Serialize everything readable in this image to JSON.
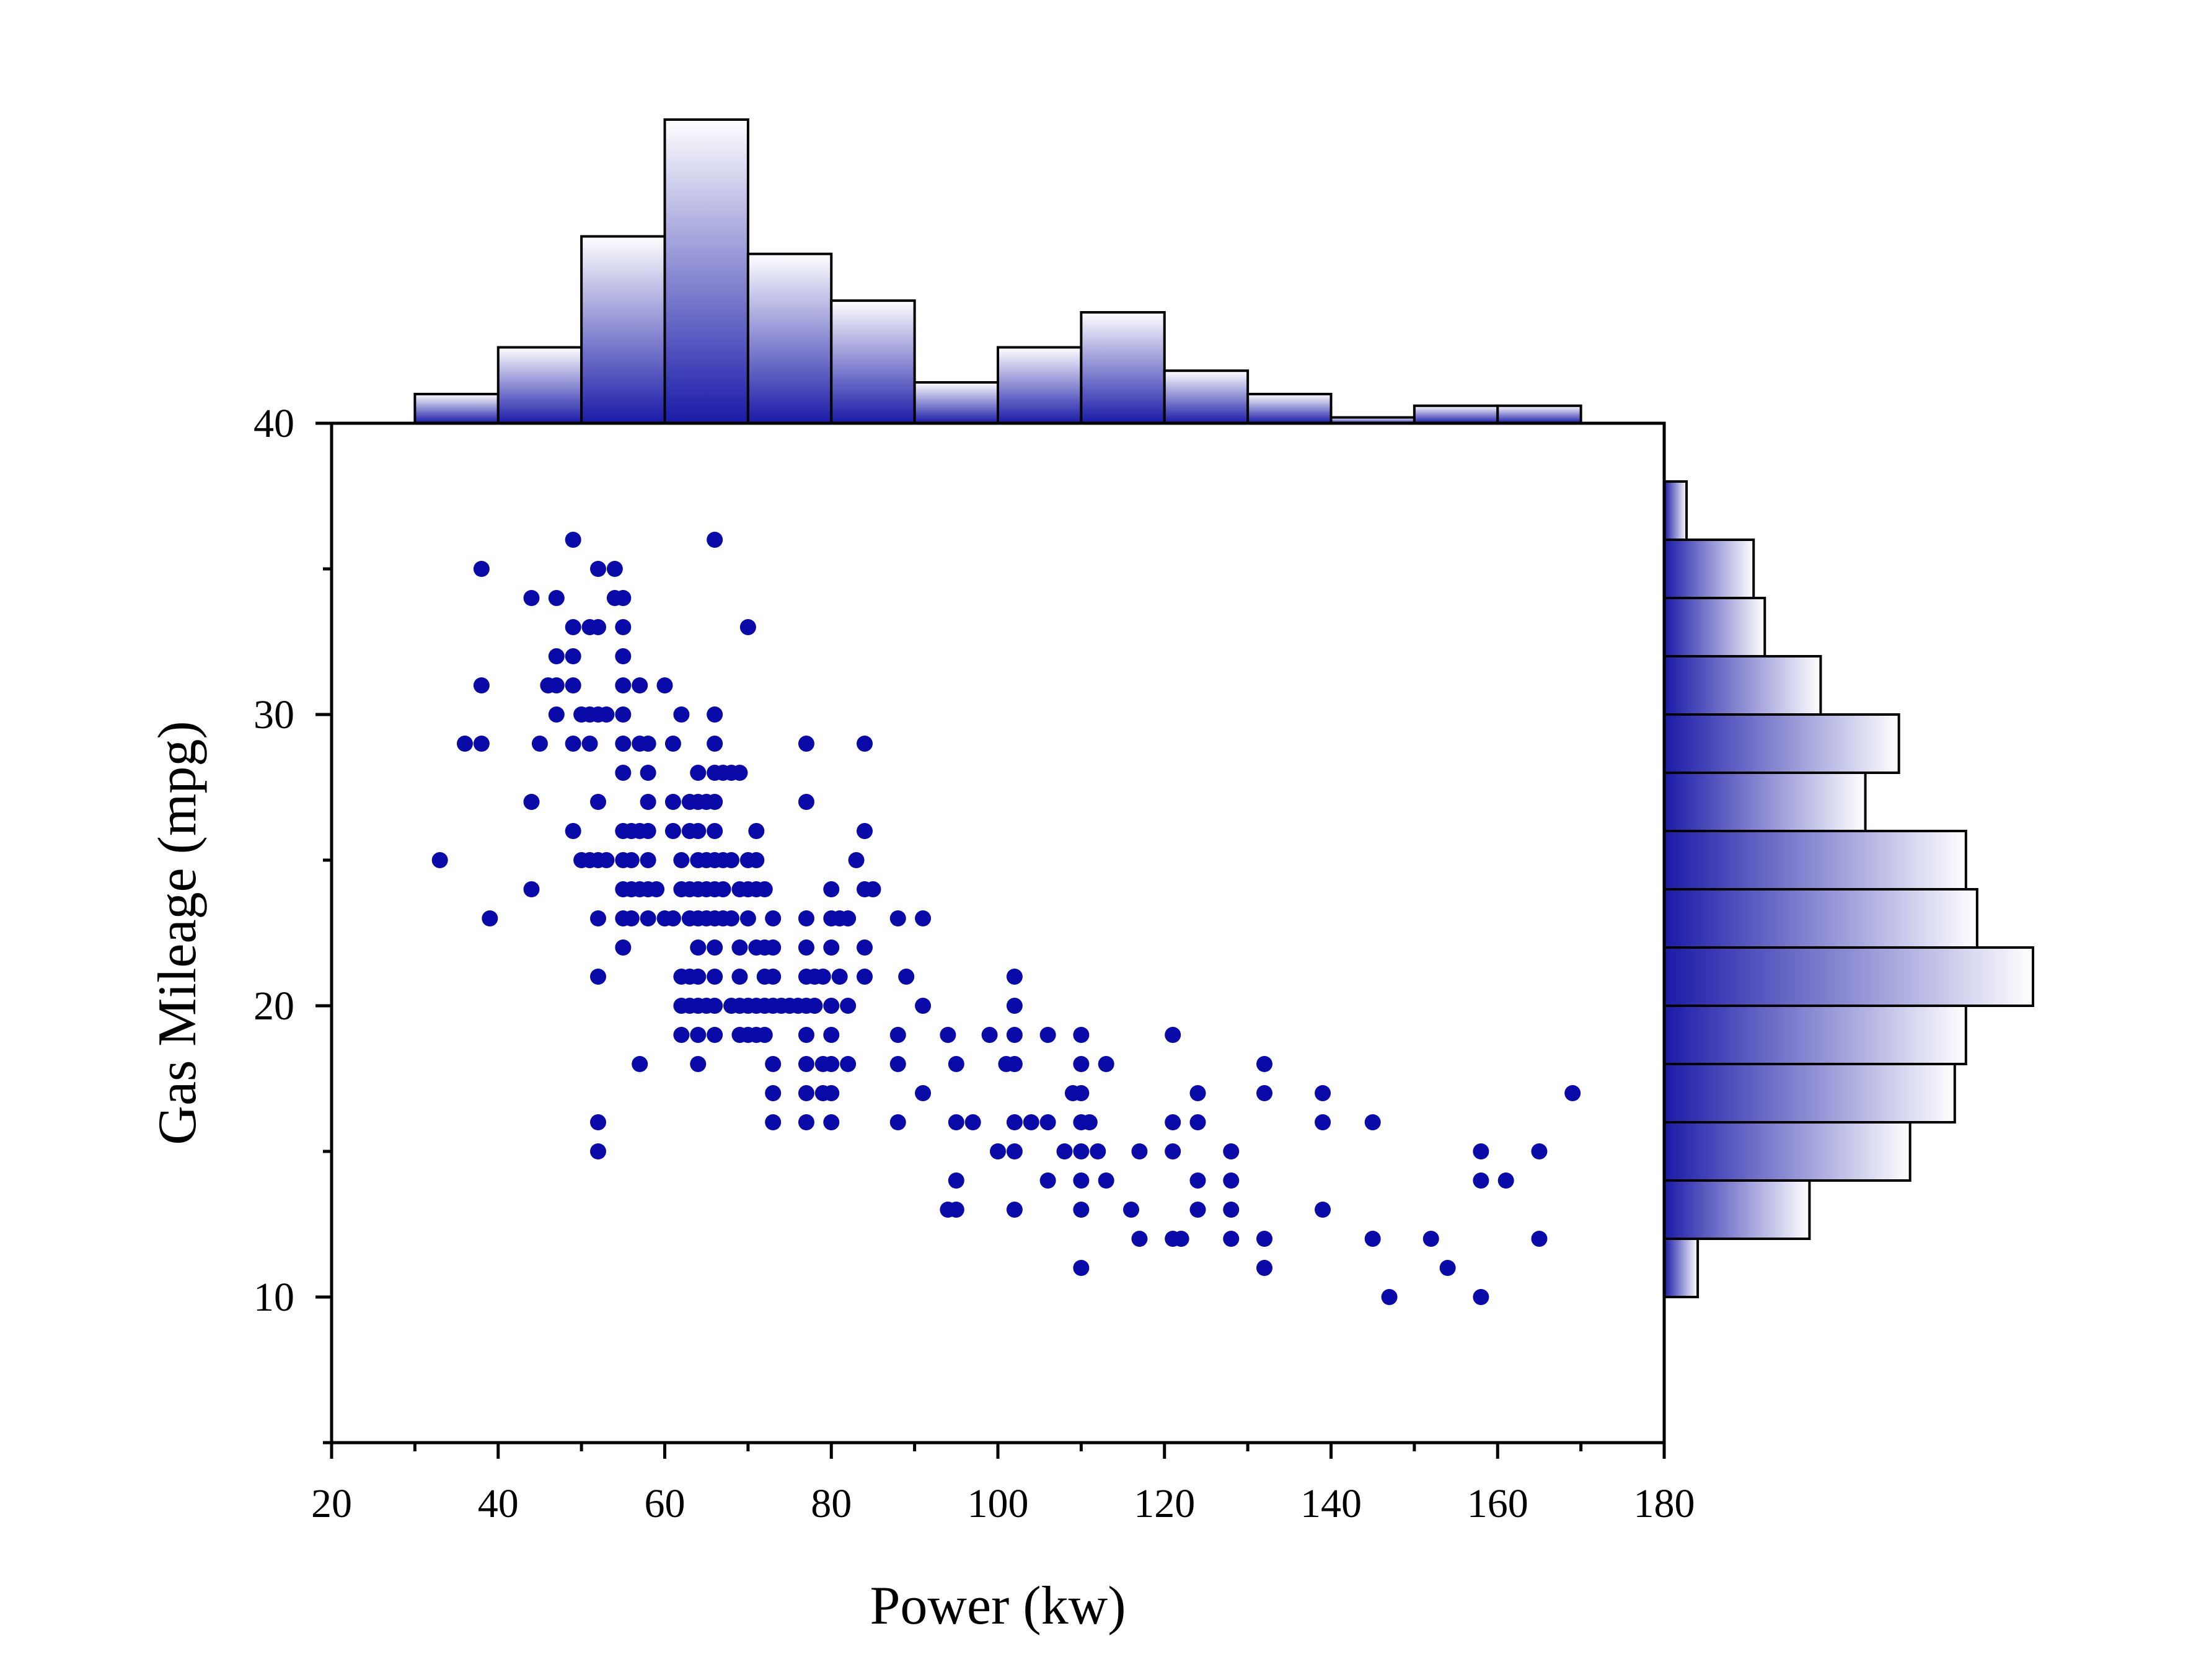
{
  "chart_data": {
    "type": "scatter",
    "xlabel": "Power (kw)",
    "ylabel": "Gas Mileage (mpg)",
    "xlim": [
      20,
      180
    ],
    "ylim": [
      5,
      40
    ],
    "x_ticks": [
      20,
      40,
      60,
      80,
      100,
      120,
      140,
      160,
      180
    ],
    "y_ticks": [
      10,
      20,
      30,
      40
    ],
    "grid": false,
    "legend": "none",
    "point_color": "#0a0aa8",
    "histogram_gradient": [
      "#1a1aa8",
      "#ffffff"
    ],
    "points": [
      [
        33,
        25
      ],
      [
        36,
        29
      ],
      [
        38,
        29
      ],
      [
        38,
        31
      ],
      [
        38,
        35
      ],
      [
        39,
        23
      ],
      [
        44,
        34
      ],
      [
        44,
        27
      ],
      [
        44,
        24
      ],
      [
        45,
        29
      ],
      [
        46,
        31
      ],
      [
        47,
        31
      ],
      [
        47,
        34
      ],
      [
        47,
        32
      ],
      [
        47,
        30
      ],
      [
        49,
        36
      ],
      [
        49,
        33
      ],
      [
        49,
        32
      ],
      [
        49,
        31
      ],
      [
        49,
        29
      ],
      [
        49,
        26
      ],
      [
        50,
        30
      ],
      [
        50,
        25
      ],
      [
        51,
        33
      ],
      [
        51,
        30
      ],
      [
        51,
        29
      ],
      [
        51,
        25
      ],
      [
        52,
        35
      ],
      [
        52,
        33
      ],
      [
        52,
        30
      ],
      [
        52,
        27
      ],
      [
        52,
        25
      ],
      [
        52,
        23
      ],
      [
        52,
        21
      ],
      [
        52,
        16
      ],
      [
        52,
        15
      ],
      [
        53,
        30
      ],
      [
        53,
        25
      ],
      [
        54,
        35
      ],
      [
        54,
        34
      ],
      [
        55,
        34
      ],
      [
        55,
        33
      ],
      [
        55,
        32
      ],
      [
        55,
        31
      ],
      [
        55,
        30
      ],
      [
        55,
        29
      ],
      [
        55,
        28
      ],
      [
        55,
        26
      ],
      [
        55,
        25
      ],
      [
        55,
        24
      ],
      [
        55,
        23
      ],
      [
        55,
        22
      ],
      [
        56,
        26
      ],
      [
        56,
        25
      ],
      [
        56,
        24
      ],
      [
        56,
        23
      ],
      [
        57,
        31
      ],
      [
        57,
        29
      ],
      [
        57,
        26
      ],
      [
        57,
        24
      ],
      [
        57,
        18
      ],
      [
        58,
        29
      ],
      [
        58,
        28
      ],
      [
        58,
        27
      ],
      [
        58,
        26
      ],
      [
        58,
        25
      ],
      [
        58,
        24
      ],
      [
        58,
        23
      ],
      [
        59,
        24
      ],
      [
        60,
        31
      ],
      [
        60,
        23
      ],
      [
        61,
        29
      ],
      [
        61,
        27
      ],
      [
        61,
        26
      ],
      [
        61,
        23
      ],
      [
        62,
        30
      ],
      [
        62,
        25
      ],
      [
        62,
        24
      ],
      [
        62,
        21
      ],
      [
        62,
        20
      ],
      [
        62,
        19
      ],
      [
        63,
        27
      ],
      [
        63,
        26
      ],
      [
        63,
        24
      ],
      [
        63,
        23
      ],
      [
        63,
        21
      ],
      [
        63,
        20
      ],
      [
        64,
        28
      ],
      [
        64,
        27
      ],
      [
        64,
        26
      ],
      [
        64,
        25
      ],
      [
        64,
        24
      ],
      [
        64,
        23
      ],
      [
        64,
        22
      ],
      [
        64,
        21
      ],
      [
        64,
        20
      ],
      [
        64,
        19
      ],
      [
        64,
        18
      ],
      [
        65,
        27
      ],
      [
        65,
        25
      ],
      [
        65,
        24
      ],
      [
        65,
        23
      ],
      [
        65,
        20
      ],
      [
        66,
        36
      ],
      [
        66,
        30
      ],
      [
        66,
        29
      ],
      [
        66,
        28
      ],
      [
        66,
        27
      ],
      [
        66,
        26
      ],
      [
        66,
        25
      ],
      [
        66,
        24
      ],
      [
        66,
        23
      ],
      [
        66,
        22
      ],
      [
        66,
        21
      ],
      [
        66,
        20
      ],
      [
        66,
        19
      ],
      [
        67,
        28
      ],
      [
        67,
        25
      ],
      [
        67,
        24
      ],
      [
        67,
        23
      ],
      [
        68,
        28
      ],
      [
        68,
        25
      ],
      [
        68,
        23
      ],
      [
        68,
        20
      ],
      [
        69,
        28
      ],
      [
        69,
        24
      ],
      [
        69,
        22
      ],
      [
        69,
        21
      ],
      [
        69,
        20
      ],
      [
        69,
        19
      ],
      [
        70,
        33
      ],
      [
        70,
        25
      ],
      [
        70,
        24
      ],
      [
        70,
        23
      ],
      [
        70,
        20
      ],
      [
        70,
        19
      ],
      [
        71,
        26
      ],
      [
        71,
        25
      ],
      [
        71,
        24
      ],
      [
        71,
        22
      ],
      [
        71,
        20
      ],
      [
        71,
        19
      ],
      [
        72,
        24
      ],
      [
        72,
        22
      ],
      [
        72,
        21
      ],
      [
        72,
        20
      ],
      [
        72,
        19
      ],
      [
        73,
        23
      ],
      [
        73,
        22
      ],
      [
        73,
        21
      ],
      [
        73,
        20
      ],
      [
        73,
        18
      ],
      [
        73,
        17
      ],
      [
        73,
        16
      ],
      [
        74,
        20
      ],
      [
        75,
        20
      ],
      [
        76,
        20
      ],
      [
        77,
        29
      ],
      [
        77,
        27
      ],
      [
        77,
        23
      ],
      [
        77,
        22
      ],
      [
        77,
        21
      ],
      [
        77,
        20
      ],
      [
        77,
        19
      ],
      [
        77,
        18
      ],
      [
        77,
        17
      ],
      [
        77,
        16
      ],
      [
        78,
        21
      ],
      [
        78,
        20
      ],
      [
        79,
        21
      ],
      [
        79,
        18
      ],
      [
        79,
        17
      ],
      [
        80,
        24
      ],
      [
        80,
        23
      ],
      [
        80,
        22
      ],
      [
        80,
        20
      ],
      [
        80,
        19
      ],
      [
        80,
        18
      ],
      [
        80,
        17
      ],
      [
        80,
        16
      ],
      [
        81,
        23
      ],
      [
        81,
        21
      ],
      [
        82,
        23
      ],
      [
        82,
        20
      ],
      [
        82,
        18
      ],
      [
        83,
        25
      ],
      [
        84,
        29
      ],
      [
        84,
        26
      ],
      [
        84,
        24
      ],
      [
        84,
        22
      ],
      [
        84,
        21
      ],
      [
        85,
        24
      ],
      [
        88,
        23
      ],
      [
        88,
        19
      ],
      [
        88,
        18
      ],
      [
        88,
        16
      ],
      [
        89,
        21
      ],
      [
        91,
        23
      ],
      [
        91,
        20
      ],
      [
        91,
        17
      ],
      [
        94,
        19
      ],
      [
        94,
        13
      ],
      [
        95,
        18
      ],
      [
        95,
        16
      ],
      [
        95,
        14
      ],
      [
        95,
        13
      ],
      [
        97,
        16
      ],
      [
        99,
        19
      ],
      [
        100,
        15
      ],
      [
        101,
        18
      ],
      [
        102,
        21
      ],
      [
        102,
        20
      ],
      [
        102,
        19
      ],
      [
        102,
        18
      ],
      [
        102,
        16
      ],
      [
        102,
        15
      ],
      [
        102,
        13
      ],
      [
        104,
        16
      ],
      [
        106,
        19
      ],
      [
        106,
        16
      ],
      [
        106,
        14
      ],
      [
        108,
        15
      ],
      [
        109,
        17
      ],
      [
        110,
        19
      ],
      [
        110,
        18
      ],
      [
        110,
        17
      ],
      [
        110,
        16
      ],
      [
        110,
        15
      ],
      [
        110,
        14
      ],
      [
        110,
        13
      ],
      [
        110,
        11
      ],
      [
        111,
        16
      ],
      [
        112,
        15
      ],
      [
        113,
        18
      ],
      [
        113,
        14
      ],
      [
        116,
        13
      ],
      [
        117,
        15
      ],
      [
        117,
        12
      ],
      [
        121,
        19
      ],
      [
        121,
        16
      ],
      [
        121,
        15
      ],
      [
        121,
        12
      ],
      [
        122,
        12
      ],
      [
        124,
        17
      ],
      [
        124,
        16
      ],
      [
        124,
        14
      ],
      [
        124,
        13
      ],
      [
        128,
        15
      ],
      [
        128,
        14
      ],
      [
        128,
        13
      ],
      [
        128,
        12
      ],
      [
        132,
        18
      ],
      [
        132,
        17
      ],
      [
        132,
        12
      ],
      [
        132,
        11
      ],
      [
        139,
        17
      ],
      [
        139,
        16
      ],
      [
        139,
        13
      ],
      [
        145,
        16
      ],
      [
        145,
        12
      ],
      [
        147,
        10
      ],
      [
        152,
        12
      ],
      [
        154,
        11
      ],
      [
        158,
        15
      ],
      [
        158,
        14
      ],
      [
        158,
        10
      ],
      [
        161,
        14
      ],
      [
        165,
        15
      ],
      [
        165,
        12
      ],
      [
        169,
        17
      ]
    ],
    "x_histogram": {
      "bin_edges": [
        30,
        40,
        50,
        60,
        70,
        80,
        90,
        100,
        110,
        120,
        130,
        140,
        150,
        160,
        170
      ],
      "counts": [
        5,
        13,
        32,
        52,
        29,
        21,
        7,
        13,
        19,
        9,
        5,
        1,
        3,
        3
      ]
    },
    "y_histogram": {
      "bin_edges": [
        10,
        12,
        14,
        16,
        18,
        20,
        22,
        24,
        26,
        28,
        30,
        32,
        34,
        36,
        38
      ],
      "counts": [
        3,
        13,
        22,
        26,
        27,
        33,
        28,
        27,
        18,
        21,
        14,
        9,
        8,
        2
      ]
    }
  }
}
